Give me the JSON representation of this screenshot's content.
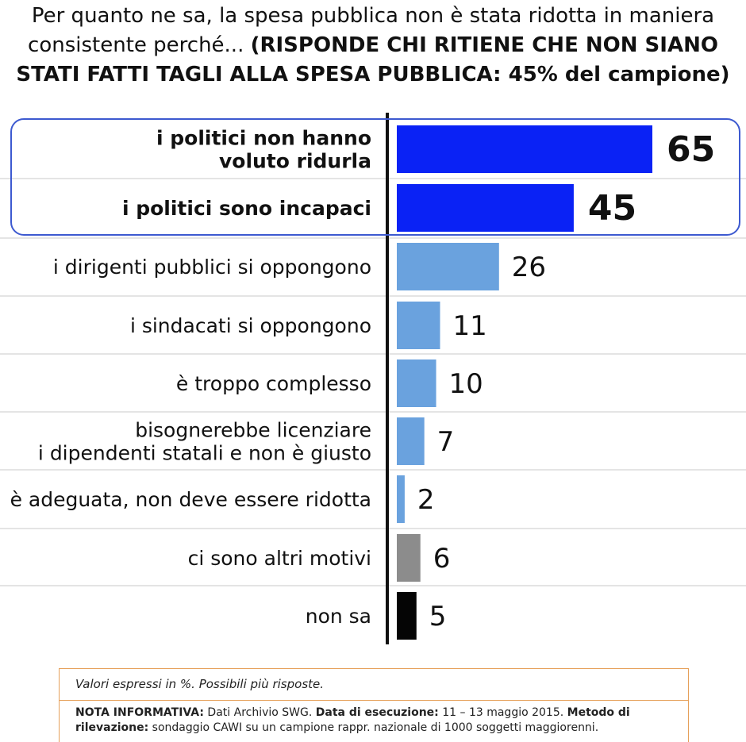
{
  "title": {
    "question": "Per quanto ne sa, la spesa pubblica non è stata ridotta in maniera consistente perché...",
    "qualifier": "(RISPONDE CHI RITIENE CHE NON SIANO STATI FATTI TAGLI ALLA SPESA PUBBLICA: 45% del campione)"
  },
  "chart_data": {
    "type": "bar",
    "orientation": "horizontal",
    "unit": "%",
    "categories": [
      "i politici non hanno voluto ridurla",
      "i politici sono incapaci",
      "i dirigenti pubblici si oppongono",
      "i sindacati si oppongono",
      "è troppo complesso",
      "bisognerebbe licenziare i dipendenti statali e non è giusto",
      "è adeguata, non deve essere ridotta",
      "ci sono altri motivi",
      "non sa"
    ],
    "label_lines": [
      [
        "i politici non hanno",
        "voluto ridurla"
      ],
      [
        "i politici sono incapaci"
      ],
      [
        "i dirigenti pubblici si oppongono"
      ],
      [
        "i sindacati si oppongono"
      ],
      [
        "è troppo complesso"
      ],
      [
        "bisognerebbe licenziare",
        "i dipendenti statali e non è giusto"
      ],
      [
        "è adeguata, non deve essere ridotta"
      ],
      [
        "ci sono altri motivi"
      ],
      [
        "non sa"
      ]
    ],
    "values": [
      65,
      45,
      26,
      11,
      10,
      7,
      2,
      6,
      5
    ],
    "highlighted": [
      true,
      true,
      false,
      false,
      false,
      false,
      false,
      false,
      false
    ],
    "colors": [
      "#0a22f5",
      "#0a22f5",
      "#6aa2de",
      "#6aa2de",
      "#6aa2de",
      "#6aa2de",
      "#6aa2de",
      "#8c8c8c",
      "#050505"
    ],
    "highlight_box_color": "#3d5ad0",
    "xlim": [
      0,
      65
    ]
  },
  "footer": {
    "note": "Valori espressi in %. Possibili più risposte.",
    "info_label": "NOTA INFORMATIVA:",
    "info_source": " Dati Archivio SWG. ",
    "date_label": "Data di esecuzione:",
    "date_value": " 11 – 13 maggio 2015. ",
    "method_label": "Metodo di rilevazione:",
    "method_value": " sondaggio CAWI su un campione rappr. nazionale di 1000 soggetti maggiorenni."
  }
}
